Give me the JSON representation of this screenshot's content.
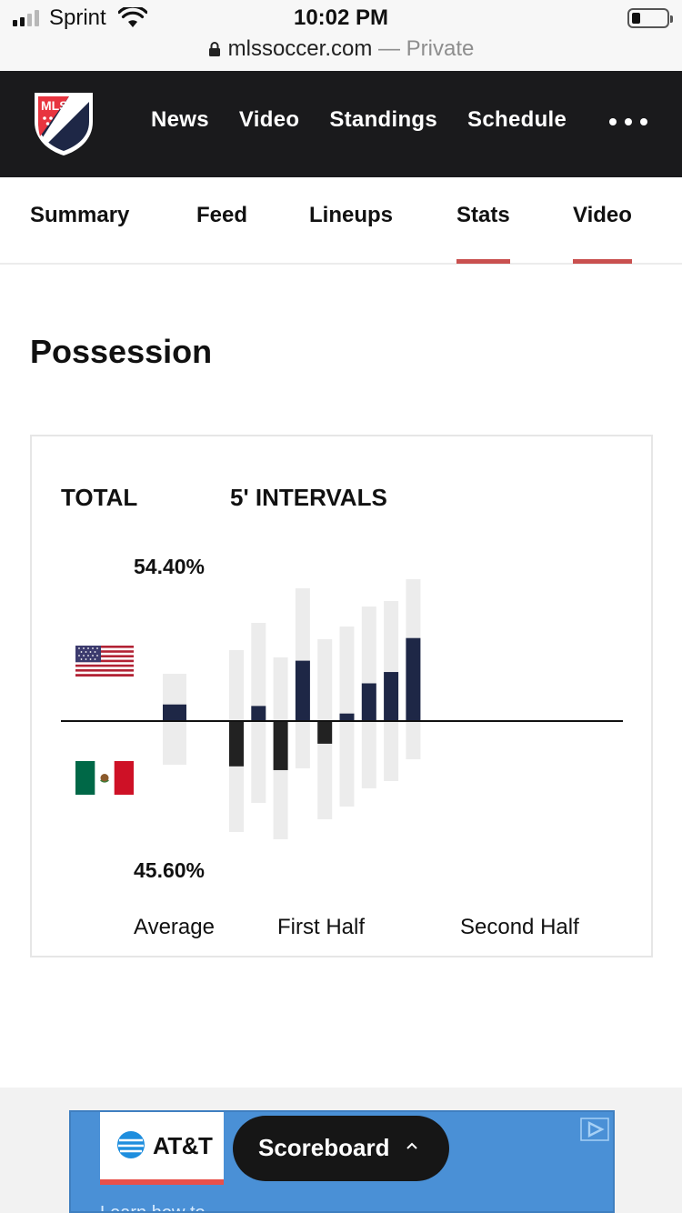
{
  "status_bar": {
    "carrier": "Sprint",
    "time": "10:02 PM"
  },
  "url_bar": {
    "domain": "mlssoccer.com",
    "separator": " — ",
    "mode": "Private"
  },
  "header": {
    "logo_text": "MLS",
    "nav": [
      "News",
      "Video",
      "Standings",
      "Schedule"
    ]
  },
  "sub_nav": {
    "tabs": [
      "Summary",
      "Feed",
      "Lineups",
      "Stats",
      "Video"
    ],
    "highlighted": [
      "Stats",
      "Video"
    ],
    "accent_color": "#c9504f"
  },
  "possession": {
    "title": "Possession",
    "tabs": {
      "total": "TOTAL",
      "intervals": "5' INTERVALS"
    },
    "top_percent": "54.40%",
    "bottom_percent": "45.60%",
    "top_team_flag": "usa-flag",
    "bottom_team_flag": "mexico-flag",
    "axis_labels": {
      "average": "Average",
      "first_half": "First Half",
      "second_half": "Second Half"
    }
  },
  "chart_data": {
    "type": "bar",
    "description_scale": "possession percent per 5-minute interval, centered at 50%",
    "average": {
      "home_pct": 54.4,
      "away_pct": 45.6
    },
    "intervals": [
      {
        "home_pct": 38,
        "away_pct": 62
      },
      {
        "home_pct": 54,
        "away_pct": 46
      },
      {
        "home_pct": 37,
        "away_pct": 63
      },
      {
        "home_pct": 66,
        "away_pct": 34
      },
      {
        "home_pct": 44,
        "away_pct": 56
      },
      {
        "home_pct": 52,
        "away_pct": 48
      },
      {
        "home_pct": 60,
        "away_pct": 40
      },
      {
        "home_pct": 63,
        "away_pct": 37
      },
      {
        "home_pct": 72,
        "away_pct": 28
      }
    ],
    "colors": {
      "home": "#1e2746",
      "away": "#222222",
      "track": "#ececec",
      "axis": "#111111"
    }
  },
  "ad": {
    "brand": "AT&T",
    "subtext": "Learn how to"
  },
  "scoreboard": {
    "label": "Scoreboard"
  }
}
